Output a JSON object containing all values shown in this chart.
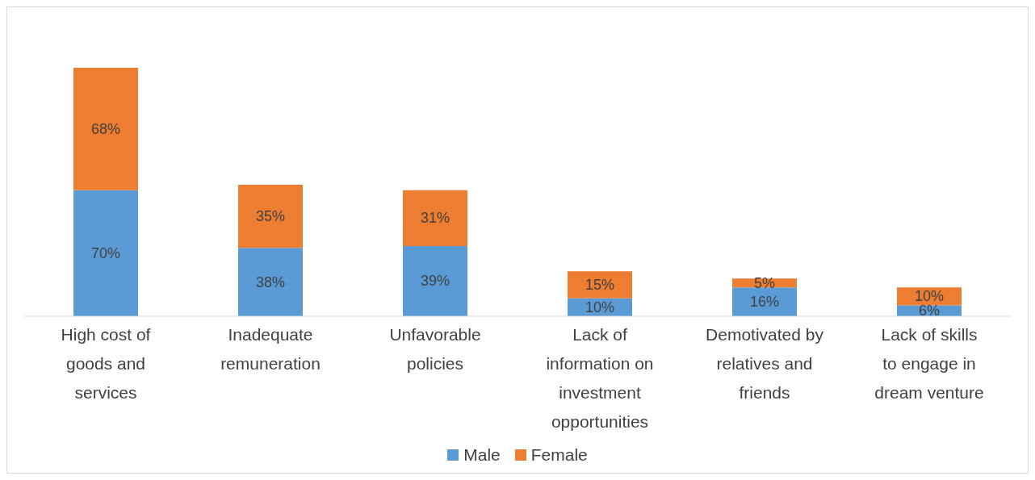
{
  "chart_data": {
    "type": "bar",
    "stacked": true,
    "categories": [
      "High cost of goods and services",
      "Inadequate remuneration",
      "Unfavorable policies",
      "Lack of information on investment opportunities",
      "Demotivated by relatives and friends",
      "Lack of skills to engage in dream venture"
    ],
    "series": [
      {
        "name": "Male",
        "color": "#5b9bd5",
        "values": [
          70,
          38,
          39,
          10,
          16,
          6
        ],
        "value_labels": [
          "70%",
          "38%",
          "39%",
          "10%",
          "16%",
          "6%"
        ]
      },
      {
        "name": "Female",
        "color": "#ed7d31",
        "values": [
          68,
          35,
          31,
          15,
          5,
          10
        ],
        "value_labels": [
          "68%",
          "35%",
          "31%",
          "15%",
          "5%",
          "10%"
        ]
      }
    ],
    "legend": "bottom"
  }
}
